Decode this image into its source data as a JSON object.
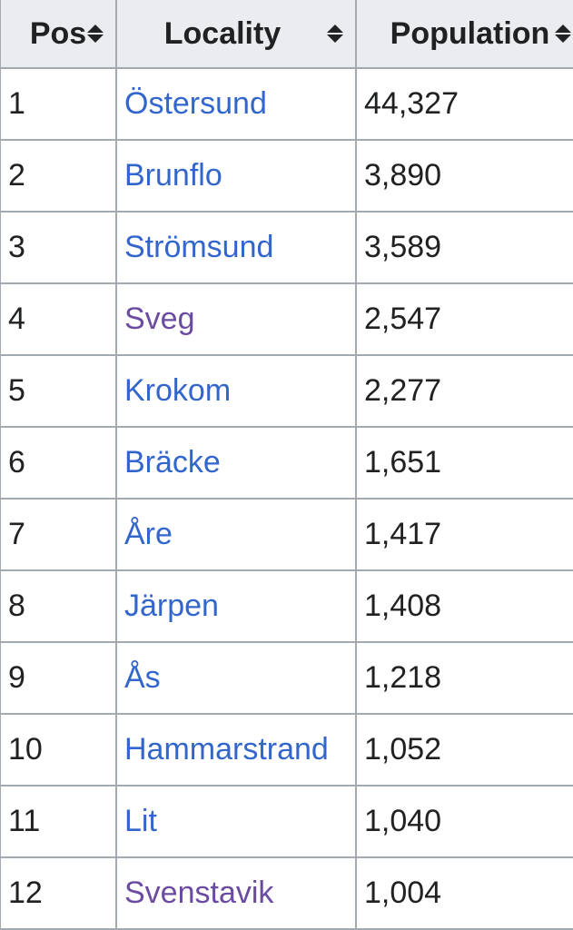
{
  "table": {
    "headers": {
      "pos": "Pos",
      "locality": "Locality",
      "population": "Population"
    },
    "rows": [
      {
        "pos": "1",
        "locality": "Östersund",
        "population": "44,327",
        "visited": false
      },
      {
        "pos": "2",
        "locality": "Brunflo",
        "population": "3,890",
        "visited": false
      },
      {
        "pos": "3",
        "locality": "Strömsund",
        "population": "3,589",
        "visited": false
      },
      {
        "pos": "4",
        "locality": "Sveg",
        "population": "2,547",
        "visited": true
      },
      {
        "pos": "5",
        "locality": "Krokom",
        "population": "2,277",
        "visited": false
      },
      {
        "pos": "6",
        "locality": "Bräcke",
        "population": "1,651",
        "visited": false
      },
      {
        "pos": "7",
        "locality": "Åre",
        "population": "1,417",
        "visited": false
      },
      {
        "pos": "8",
        "locality": "Järpen",
        "population": "1,408",
        "visited": false
      },
      {
        "pos": "9",
        "locality": "Ås",
        "population": "1,218",
        "visited": false
      },
      {
        "pos": "10",
        "locality": "Hammarstrand",
        "population": "1,052",
        "visited": false
      },
      {
        "pos": "11",
        "locality": "Lit",
        "population": "1,040",
        "visited": false
      },
      {
        "pos": "12",
        "locality": "Svenstavik",
        "population": "1,004",
        "visited": true
      }
    ]
  },
  "icons": {
    "sort": "sort-both-icon"
  },
  "colors": {
    "link": "#3366cc",
    "visited_link": "#6b4ba1",
    "header_bg": "#eaecf0",
    "border": "#a2a9b1",
    "text": "#202122"
  }
}
